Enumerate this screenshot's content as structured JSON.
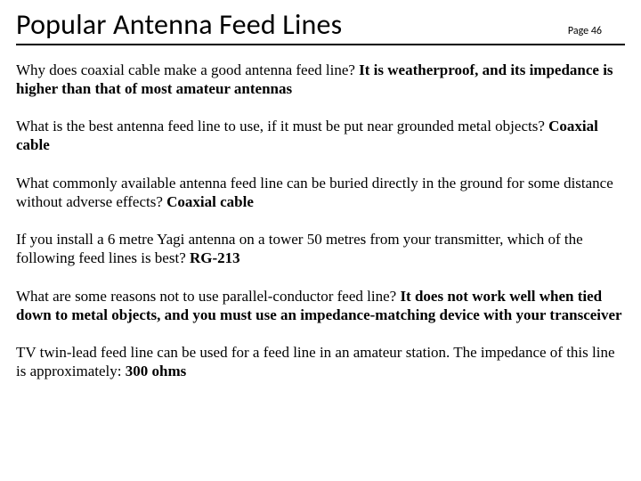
{
  "header": {
    "title": "Popular Antenna Feed Lines",
    "page_label": "Page 46"
  },
  "items": [
    {
      "q": "Why does coaxial cable make a good  antenna feed line? ",
      "a": "It is weatherproof, and its impedance is higher than that of most amateur antennas"
    },
    {
      "q": "What is the best antenna feed line to use, if it must be put near grounded metal objects?  ",
      "a": "Coaxial cable"
    },
    {
      "q": "What commonly available antenna feed  line can be buried directly in the ground for some distance without adverse  effects? ",
      "a": "Coaxial cable"
    },
    {
      "q": "If you install a 6 metre Yagi antenna on  a tower 50 metres from your transmitter, which of the following feed lines is best?  ",
      "a": "RG-213"
    },
    {
      "q": "What are some reasons not to use  parallel-conductor feed line? ",
      "a": "It does not work well when tied down to  metal objects, and you must use an  impedance-matching device with your  transceiver"
    },
    {
      "q": "TV twin-lead feed line can be used for a  feed line in an amateur station. The impedance of this line is approximately: ",
      "a": "300 ohms"
    }
  ],
  "colors": {
    "background": "#ffffff",
    "text": "#000000",
    "rule": "#000000"
  },
  "typography": {
    "title_font": "Calibri",
    "title_size_pt": 24,
    "body_font": "Times New Roman",
    "body_size_pt": 13,
    "page_label_size_pt": 9
  }
}
